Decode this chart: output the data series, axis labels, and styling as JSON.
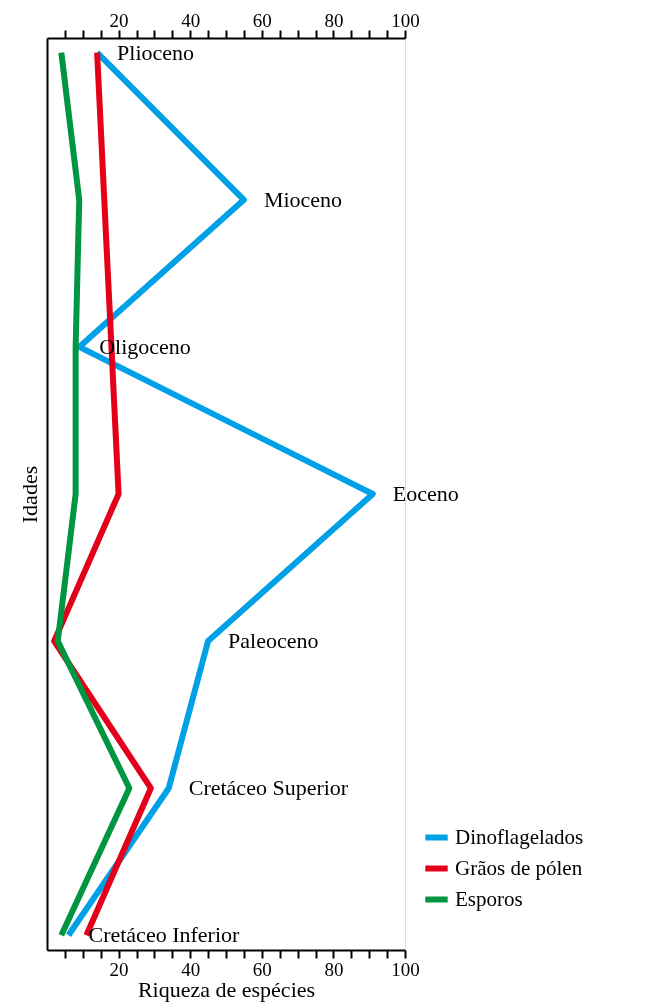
{
  "chart_data": {
    "type": "line",
    "orientation": "horizontal",
    "xlabel": "Riqueza de espécies",
    "ylabel": "Idades",
    "tick_labels": "x",
    "legend": "bottom right",
    "grid": false,
    "categories": [
      "Plioceno",
      "Mioceno",
      "Oligoceno",
      "Eoceno",
      "Paleoceno",
      "Cretáceo Superior",
      "Cretáceo Inferior"
    ],
    "xlim": [
      0,
      100
    ],
    "xticks": [
      {
        "value": 5,
        "label": null
      },
      {
        "value": 10,
        "label": null
      },
      {
        "value": 15,
        "label": null
      },
      20,
      {
        "value": 25,
        "label": null
      },
      {
        "value": 30,
        "label": null
      },
      {
        "value": 35,
        "label": null
      },
      40,
      {
        "value": 45,
        "label": null
      },
      {
        "value": 50,
        "label": null
      },
      {
        "value": 55,
        "label": null
      },
      60,
      {
        "value": 65,
        "label": null
      },
      {
        "value": 70,
        "label": null
      },
      {
        "value": 75,
        "label": null
      },
      80,
      {
        "value": 85,
        "label": null
      },
      {
        "value": 90,
        "label": null
      },
      {
        "value": 95,
        "label": null
      },
      100
    ],
    "x2lim": [
      0,
      100
    ],
    "x2ticks": [
      {
        "value": 5,
        "label": null
      },
      {
        "value": 10,
        "label": null
      },
      {
        "value": 15,
        "label": null
      },
      20,
      {
        "value": 25,
        "label": null
      },
      {
        "value": 30,
        "label": null
      },
      {
        "value": 35,
        "label": null
      },
      40,
      {
        "value": 45,
        "label": null
      },
      {
        "value": 50,
        "label": null
      },
      {
        "value": 55,
        "label": null
      },
      60,
      {
        "value": 65,
        "label": null
      },
      {
        "value": 70,
        "label": null
      },
      {
        "value": 75,
        "label": null
      },
      80,
      {
        "value": 85,
        "label": null
      },
      {
        "value": 90,
        "label": null
      },
      {
        "value": 95,
        "label": null
      },
      100
    ],
    "series": [
      {
        "name": "Dinoflagelados",
        "color": "#00a0e6",
        "values": [
          14,
          55,
          9,
          91,
          45,
          34,
          6
        ]
      },
      {
        "name": "Grãos de pólen",
        "color": "#e2001a",
        "values": [
          14,
          16,
          18,
          20,
          2,
          29,
          11
        ]
      },
      {
        "name": "Esporos",
        "color": "#009540",
        "values": [
          4,
          9,
          8,
          8,
          3,
          23,
          4
        ]
      }
    ]
  }
}
